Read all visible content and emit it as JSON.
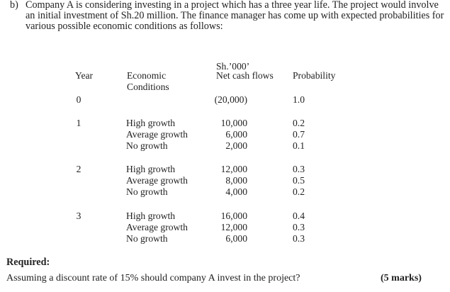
{
  "question": {
    "label": "b)",
    "intro_lines": [
      "Company A is considering investing in a project which has a three year life.  The project would involve",
      "an initial investment of Sh.20 million.  The finance manager has come up with expected probabilities for",
      "various possible economic conditions as follows:"
    ]
  },
  "table": {
    "headers": {
      "year": "Year",
      "conditions": [
        "Economic",
        "Conditions"
      ],
      "cashflow": [
        "Sh.’000’",
        "Net cash flows"
      ],
      "probability": "Probability"
    },
    "rows": [
      {
        "year": "0",
        "conditions": [],
        "cashflows": [
          "(20,000)"
        ],
        "probabilities": [
          "1.0"
        ]
      },
      {
        "year": "1",
        "conditions": [
          "High growth",
          "Average growth",
          "No growth"
        ],
        "cashflows": [
          "10,000",
          "6,000",
          "2,000"
        ],
        "probabilities": [
          "0.2",
          "0.7",
          "0.1"
        ]
      },
      {
        "year": "2",
        "conditions": [
          "High growth",
          "Average growth",
          "No growth"
        ],
        "cashflows": [
          "12,000",
          "8,000",
          "4,000"
        ],
        "probabilities": [
          "0.3",
          "0.5",
          "0.2"
        ]
      },
      {
        "year": "3",
        "conditions": [
          "High growth",
          "Average growth",
          "No growth"
        ],
        "cashflows": [
          "16,000",
          "12,000",
          "6,000"
        ],
        "probabilities": [
          "0.4",
          "0.3",
          "0.3"
        ]
      }
    ]
  },
  "required": {
    "heading": "Required:",
    "question": "Assuming a discount rate of 15% should company A invest in the project?",
    "marks": "(5 marks)"
  }
}
